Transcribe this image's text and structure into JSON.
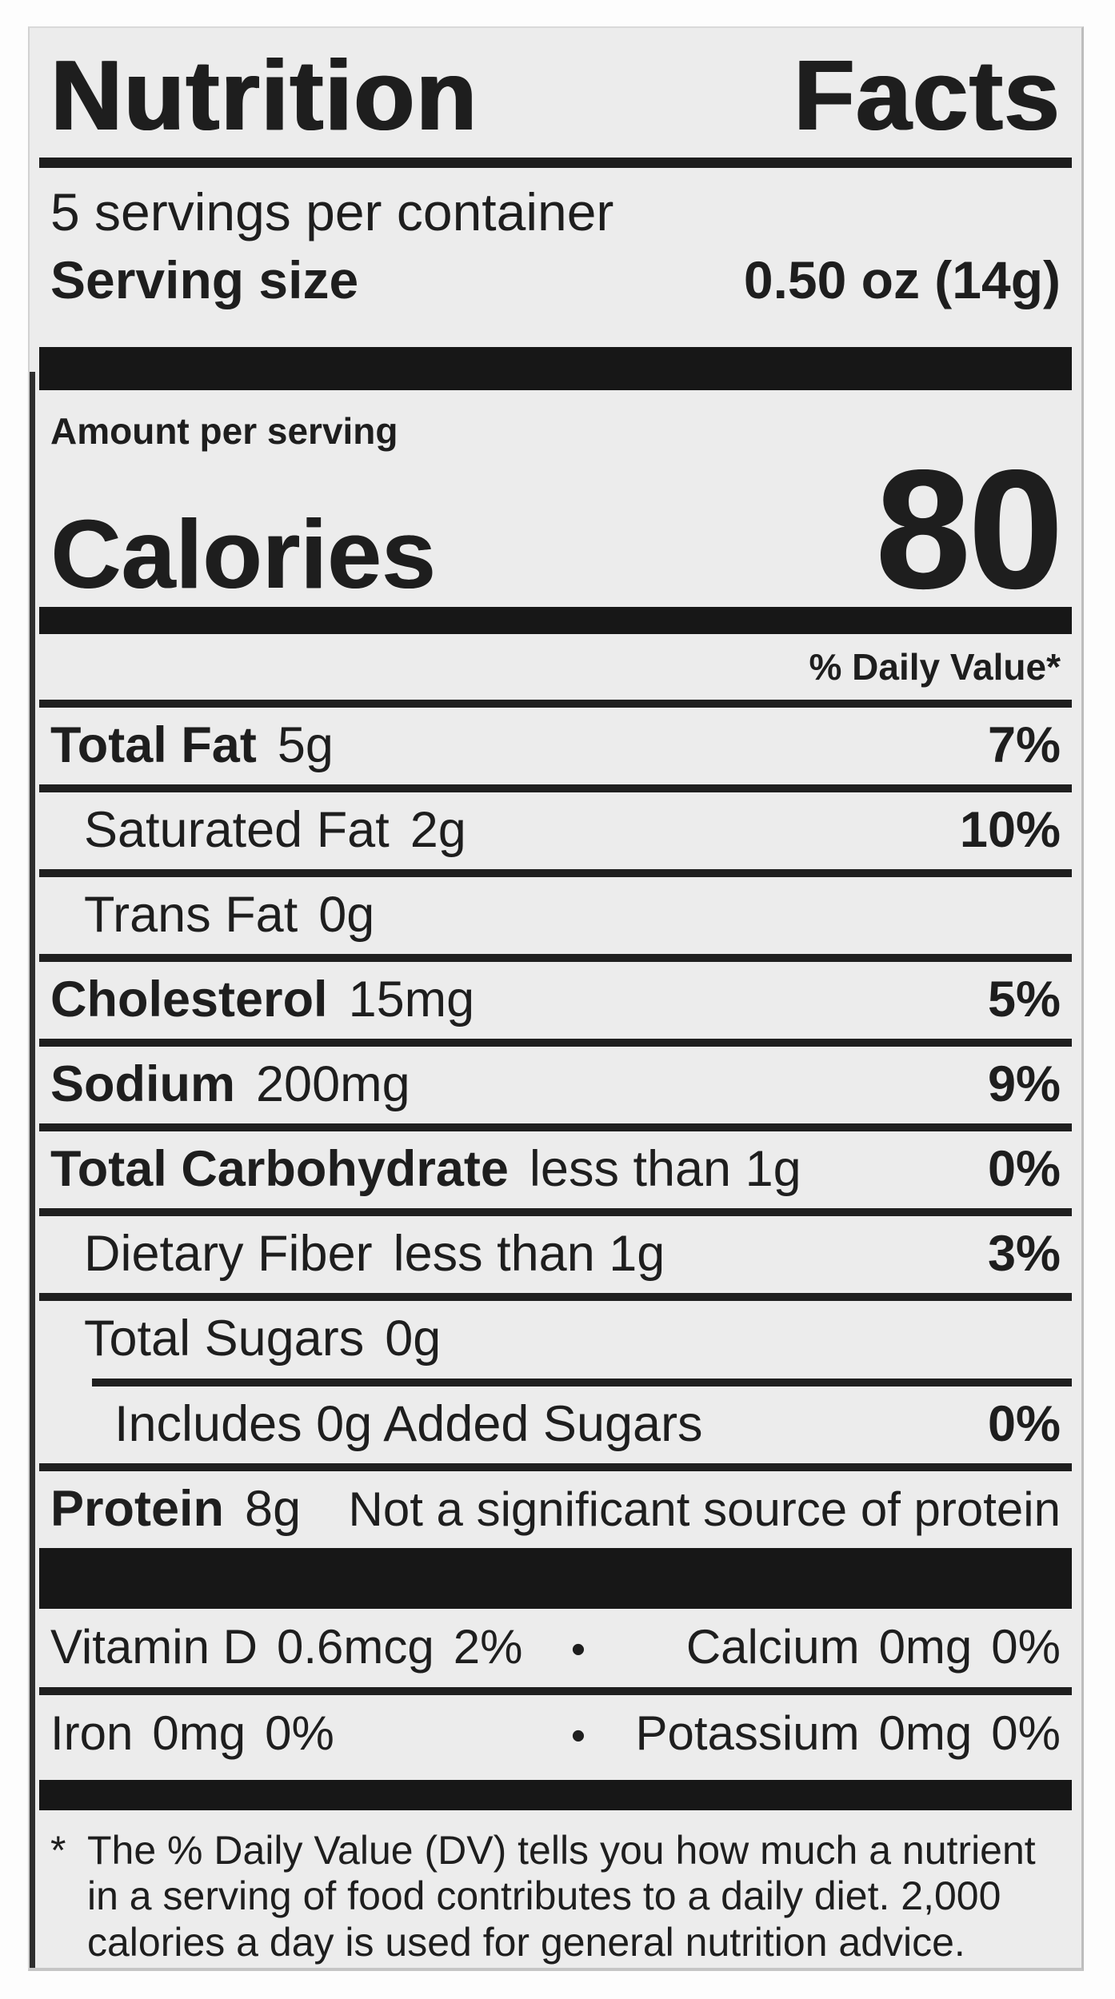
{
  "colors": {
    "page_background": "#fdfdfd",
    "label_background": "#ececec",
    "text": "#1e1e1e",
    "bar": "#171717"
  },
  "nutrition_label": {
    "title": {
      "word1": "Nutrition",
      "word2": "Facts",
      "full": "Nutrition Facts"
    },
    "servings_per_container": "5 servings per container",
    "serving_size": {
      "label": "Serving size",
      "value": "0.50 oz (14g)"
    },
    "amount_per_serving": "Amount per serving",
    "calories": {
      "label": "Calories",
      "value": "80"
    },
    "daily_value_header": "% Daily Value*",
    "rows": [
      {
        "name": "Total Fat",
        "amount": "5g",
        "daily_value": "7%"
      },
      {
        "name": "Saturated Fat",
        "amount": "2g",
        "daily_value": "10%"
      },
      {
        "name": "Trans Fat",
        "amount": "0g",
        "daily_value": ""
      },
      {
        "name": "Cholesterol",
        "amount": "15mg",
        "daily_value": "5%"
      },
      {
        "name": "Sodium",
        "amount": "200mg",
        "daily_value": "9%"
      },
      {
        "name": "Total Carbohydrate",
        "amount": "less than 1g",
        "daily_value": "0%"
      },
      {
        "name": "Dietary Fiber",
        "amount": "less than 1g",
        "daily_value": "3%"
      },
      {
        "name": "Total Sugars",
        "amount": "0g",
        "daily_value": ""
      },
      {
        "name": "Includes 0g Added Sugars",
        "amount": "",
        "daily_value": "0%"
      },
      {
        "name": "Protein",
        "amount": "8g",
        "daily_value": "",
        "note": "Not a significant source of protein"
      }
    ],
    "micronutrients": {
      "bullet": "•",
      "row1": {
        "left": {
          "name": "Vitamin D",
          "amount": "0.6mcg",
          "daily_value": "2%"
        },
        "right": {
          "name": "Calcium",
          "amount": "0mg",
          "daily_value": "0%"
        }
      },
      "row2": {
        "left": {
          "name": "Iron",
          "amount": "0mg",
          "daily_value": "0%"
        },
        "right": {
          "name": "Potassium",
          "amount": "0mg",
          "daily_value": "0%"
        }
      }
    },
    "footnote": {
      "marker": "*",
      "text": "The % Daily Value (DV) tells you how much a nutrient in a serving of food contributes to a daily diet. 2,000 calories a day is used for general nutrition advice."
    }
  }
}
